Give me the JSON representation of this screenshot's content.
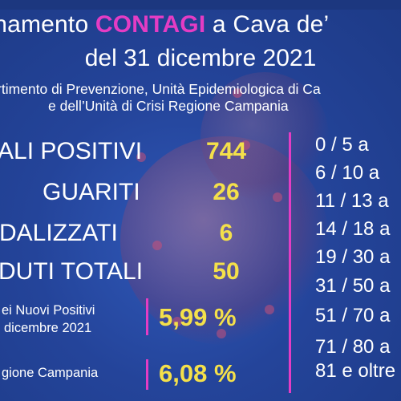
{
  "header": {
    "title_line1_prefix": "rnamento ",
    "title_line1_accent": "CONTAGI",
    "title_line1_suffix": " a Cava de’",
    "title_line2": "del 31 dicembre 2021",
    "subtitle_line1": "rtimento di Prevenzione, Unità Epidemiologica di Ca",
    "subtitle_line2": "e dell’Unità di Crisi Regione Campania"
  },
  "stats": [
    {
      "label": "ALI POSITIVI",
      "value": "744"
    },
    {
      "label": "GUARITI",
      "value": "26"
    },
    {
      "label": "DALIZZATI",
      "value": "6"
    },
    {
      "label": "DUTI TOTALI",
      "value": "50"
    }
  ],
  "rates": [
    {
      "label_line1": "ei Nuovi Positivi",
      "label_line2": "dicembre 2021",
      "value": "5,99 %"
    },
    {
      "label_line1": "gione Campania",
      "label_line2": "",
      "value": "6,08 %"
    }
  ],
  "age_ranges": [
    "0  /   5 a",
    "6  /  10 a",
    "11  /  13 a",
    "14 / 18  a",
    "19 / 30 a",
    "31 / 50 a",
    "51 / 70 a",
    "71 / 80 a",
    "81 e oltre"
  ],
  "colors": {
    "background": "#2a4a9e",
    "accent": "#e43cc4",
    "value_yellow": "#f4e04a",
    "text": "#ffffff"
  }
}
